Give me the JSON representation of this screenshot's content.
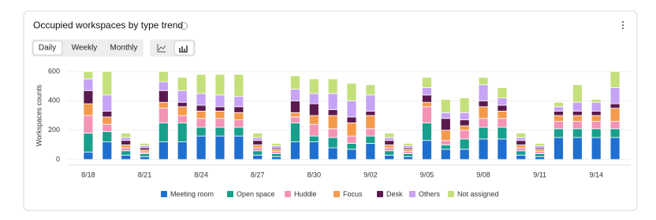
{
  "ui": {
    "tabs": [
      "Daily",
      "Weekly",
      "Monthly"
    ]
  },
  "chart_data": {
    "type": "bar",
    "stacked": true,
    "title": "Occupied workspaces by type trend",
    "y_label": "Workspaces counts",
    "categories": [
      "8/18",
      null,
      null,
      "8/21",
      null,
      null,
      "8/24",
      null,
      null,
      "8/27",
      null,
      null,
      "8/30",
      null,
      null,
      "9/02",
      null,
      null,
      "9/05",
      null,
      null,
      "9/08",
      null,
      null,
      "9/11",
      null,
      null,
      "9/14",
      null
    ],
    "ylim": [
      0,
      600
    ],
    "yticks": [
      0,
      200,
      400,
      600
    ],
    "grid": true,
    "series": [
      {
        "name": "Meeting room",
        "color": "#1f6fd1",
        "values": [
          50,
          120,
          30,
          20,
          120,
          120,
          160,
          160,
          160,
          30,
          20,
          120,
          120,
          80,
          70,
          110,
          30,
          20,
          130,
          70,
          70,
          140,
          140,
          30,
          20,
          150,
          150,
          150,
          150
        ]
      },
      {
        "name": "Open space",
        "color": "#17a08c",
        "values": [
          130,
          70,
          30,
          20,
          130,
          130,
          60,
          60,
          60,
          30,
          20,
          130,
          40,
          70,
          40,
          50,
          30,
          20,
          120,
          30,
          70,
          80,
          80,
          30,
          20,
          60,
          60,
          60,
          60
        ]
      },
      {
        "name": "Huddle",
        "color": "#f493b5",
        "values": [
          120,
          50,
          20,
          10,
          100,
          50,
          60,
          60,
          50,
          20,
          15,
          40,
          80,
          60,
          50,
          50,
          20,
          15,
          110,
          30,
          60,
          60,
          60,
          20,
          15,
          50,
          50,
          50,
          50
        ]
      },
      {
        "name": "Focus",
        "color": "#f59a4b",
        "values": [
          80,
          50,
          20,
          15,
          40,
          60,
          50,
          50,
          50,
          20,
          15,
          30,
          60,
          90,
          90,
          90,
          20,
          15,
          30,
          70,
          30,
          80,
          50,
          20,
          15,
          40,
          40,
          40,
          90
        ]
      },
      {
        "name": "Desk",
        "color": "#5b1a4e",
        "values": [
          90,
          40,
          30,
          15,
          80,
          30,
          40,
          30,
          40,
          30,
          10,
          80,
          80,
          40,
          40,
          30,
          30,
          10,
          50,
          80,
          40,
          40,
          40,
          30,
          10,
          30,
          30,
          30,
          30
        ]
      },
      {
        "name": "Others",
        "color": "#c6a3f5",
        "values": [
          80,
          110,
          20,
          15,
          60,
          80,
          80,
          80,
          70,
          20,
          15,
          80,
          70,
          110,
          110,
          110,
          20,
          15,
          50,
          40,
          50,
          110,
          50,
          20,
          15,
          30,
          60,
          60,
          110
        ]
      },
      {
        "name": "Not assigned",
        "color": "#c4e07b",
        "values": [
          50,
          160,
          30,
          15,
          70,
          90,
          130,
          140,
          150,
          30,
          15,
          90,
          100,
          100,
          120,
          70,
          30,
          15,
          70,
          90,
          100,
          50,
          70,
          30,
          15,
          30,
          120,
          20,
          110
        ]
      }
    ]
  }
}
